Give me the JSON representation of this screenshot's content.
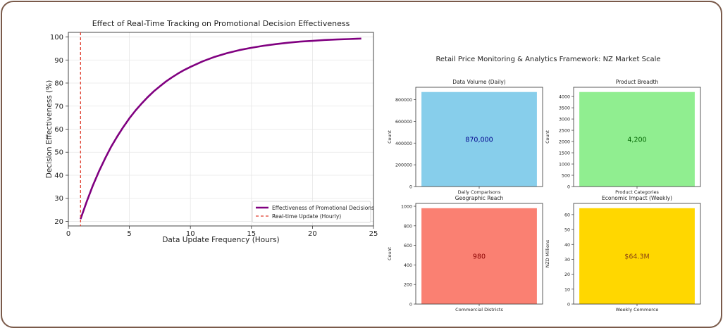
{
  "chart_data": [
    {
      "type": "line",
      "title": "Effect of Real-Time Tracking on Promotional Decision Effectiveness",
      "xlabel": "Data Update Frequency (Hours)",
      "ylabel": "Decision Effectiveness (%)",
      "xlim": [
        0,
        25
      ],
      "ylim": [
        18,
        102
      ],
      "xticks": [
        0,
        5,
        10,
        15,
        20,
        25
      ],
      "yticks": [
        20,
        30,
        40,
        50,
        60,
        70,
        80,
        90,
        100
      ],
      "grid": true,
      "legend_position": "lower-right",
      "series": [
        {
          "name": "Effectiveness of Promotional Decisions",
          "color": "#800080",
          "x": [
            1,
            1.5,
            2,
            2.5,
            3,
            3.5,
            4,
            4.5,
            5,
            5.5,
            6,
            6.5,
            7,
            7.5,
            8,
            8.5,
            9,
            9.5,
            10,
            11,
            12,
            13,
            14,
            15,
            16,
            17,
            18,
            19,
            20,
            21,
            22,
            23,
            24
          ],
          "y": [
            21.0,
            28.5,
            35.4,
            41.6,
            47.2,
            52.3,
            56.8,
            60.9,
            64.7,
            68.1,
            71.1,
            73.9,
            76.4,
            78.6,
            80.7,
            82.5,
            84.2,
            85.7,
            87.0,
            89.4,
            91.4,
            93.0,
            94.3,
            95.3,
            96.2,
            96.9,
            97.5,
            98.0,
            98.3,
            98.7,
            98.9,
            99.1,
            99.3
          ]
        },
        {
          "name": "Real-time Update (Hourly)",
          "color": "#e03c2c",
          "style": "dashed",
          "x_vertical": 1
        }
      ]
    },
    {
      "type": "bar",
      "suptitle": "Retail Price Monitoring & Analytics Framework: NZ Market Scale",
      "subplots": [
        {
          "title": "Data Volume (Daily)",
          "category": "Daily Comparisons",
          "ylabel": "Count",
          "value": 870000,
          "label": "870,000",
          "ylim": [
            0,
            913500
          ],
          "yticks": [
            0,
            200000,
            400000,
            600000,
            800000
          ],
          "color": "#87ceeb",
          "label_color": "#00008b"
        },
        {
          "title": "Product Breadth",
          "category": "Product Categories",
          "ylabel": "Count",
          "value": 4200,
          "label": "4,200",
          "ylim": [
            0,
            4410
          ],
          "yticks": [
            0,
            500,
            1000,
            1500,
            2000,
            2500,
            3000,
            3500,
            4000
          ],
          "color": "#90ee90",
          "label_color": "#006400"
        },
        {
          "title": "Geographic Reach",
          "category": "Commercial Districts",
          "ylabel": "Count",
          "value": 980,
          "label": "980",
          "ylim": [
            0,
            1029
          ],
          "yticks": [
            0,
            200,
            400,
            600,
            800,
            1000
          ],
          "color": "#fa8072",
          "label_color": "#8b0000"
        },
        {
          "title": "Economic Impact (Weekly)",
          "category": "Weekly Commerce",
          "ylabel": "NZD Millions",
          "value": 64.3,
          "label": "$64.3M",
          "ylim": [
            0,
            67.5
          ],
          "yticks": [
            0,
            10,
            20,
            30,
            40,
            50,
            60
          ],
          "color": "#ffd700",
          "label_color": "#8b4513"
        }
      ]
    }
  ]
}
